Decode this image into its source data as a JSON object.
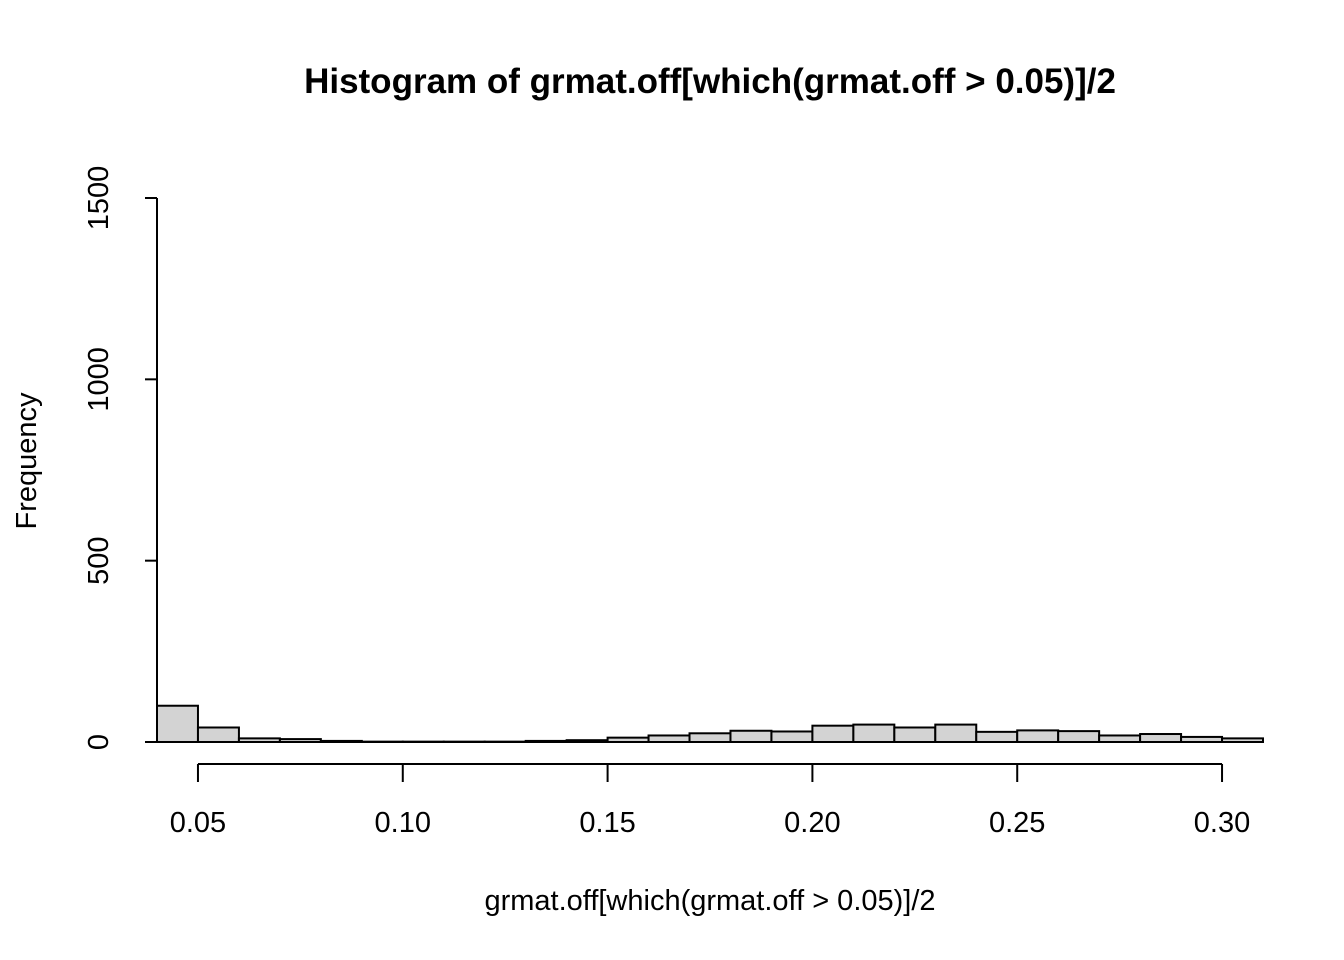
{
  "chart_data": {
    "type": "bar",
    "title": "Histogram of grmat.off[which(grmat.off > 0.05)]/2",
    "xlabel": "grmat.off[which(grmat.off > 0.05)]/2",
    "ylabel": "Frequency",
    "xlim": [
      0.04,
      0.31
    ],
    "ylim": [
      0,
      1500
    ],
    "x_ticks": [
      "0.05",
      "0.10",
      "0.15",
      "0.20",
      "0.25",
      "0.30"
    ],
    "x_tick_values": [
      0.05,
      0.1,
      0.15,
      0.2,
      0.25,
      0.3
    ],
    "y_ticks": [
      "0",
      "500",
      "1000",
      "1500"
    ],
    "y_tick_values": [
      0,
      500,
      1000,
      1500
    ],
    "bin_edges": [
      0.04,
      0.05,
      0.06,
      0.07,
      0.08,
      0.09,
      0.1,
      0.11,
      0.12,
      0.13,
      0.14,
      0.15,
      0.16,
      0.17,
      0.18,
      0.19,
      0.2,
      0.21,
      0.22,
      0.23,
      0.24,
      0.25,
      0.26,
      0.27,
      0.28,
      0.29,
      0.3,
      0.31
    ],
    "values": [
      100,
      40,
      10,
      8,
      3,
      1,
      1,
      1,
      1,
      3,
      5,
      12,
      18,
      24,
      31,
      29,
      45,
      48,
      40,
      48,
      28,
      32,
      30,
      18,
      22,
      14,
      10
    ],
    "bar_fill": "#d3d3d3",
    "bar_stroke": "#000000",
    "grid": false,
    "legend": "none"
  }
}
